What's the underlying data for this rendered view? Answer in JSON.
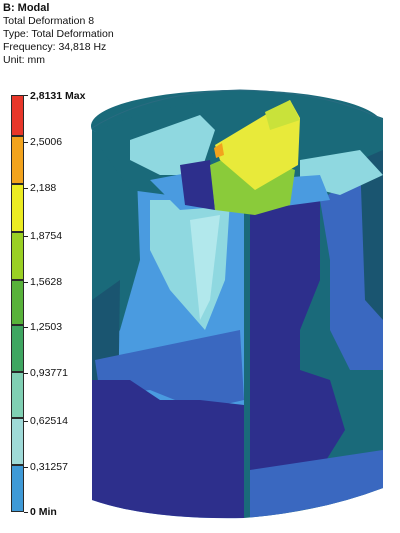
{
  "header": {
    "title": "B: Modal",
    "result_name": "Total Deformation 8",
    "type_line": "Type: Total Deformation",
    "frequency_line": "Frequency: 34,818 Hz",
    "unit_line": "Unit: mm"
  },
  "legend": {
    "labels": [
      "2,8131 Max",
      "2,5006",
      "2,188",
      "1,8754",
      "1,5628",
      "1,2503",
      "0,93771",
      "0,62514",
      "0,31257",
      "0 Min"
    ],
    "colors": [
      "#e8372a",
      "#f2a31d",
      "#ecec22",
      "#9ad024",
      "#58b23a",
      "#3fa661",
      "#80cfb3",
      "#9fdad8",
      "#3f9ad7",
      "#2f3d8f"
    ]
  },
  "model_colors": {
    "dark_blue": "#2d2f8c",
    "blue": "#3a68c0",
    "light_blue": "#4a9be0",
    "teal": "#1a6a7a",
    "dark_teal": "#1a5570",
    "cyan": "#8fd8e0",
    "light_cyan": "#b2e8ec",
    "green": "#8acb3a",
    "yellow": "#e8ea3a"
  }
}
